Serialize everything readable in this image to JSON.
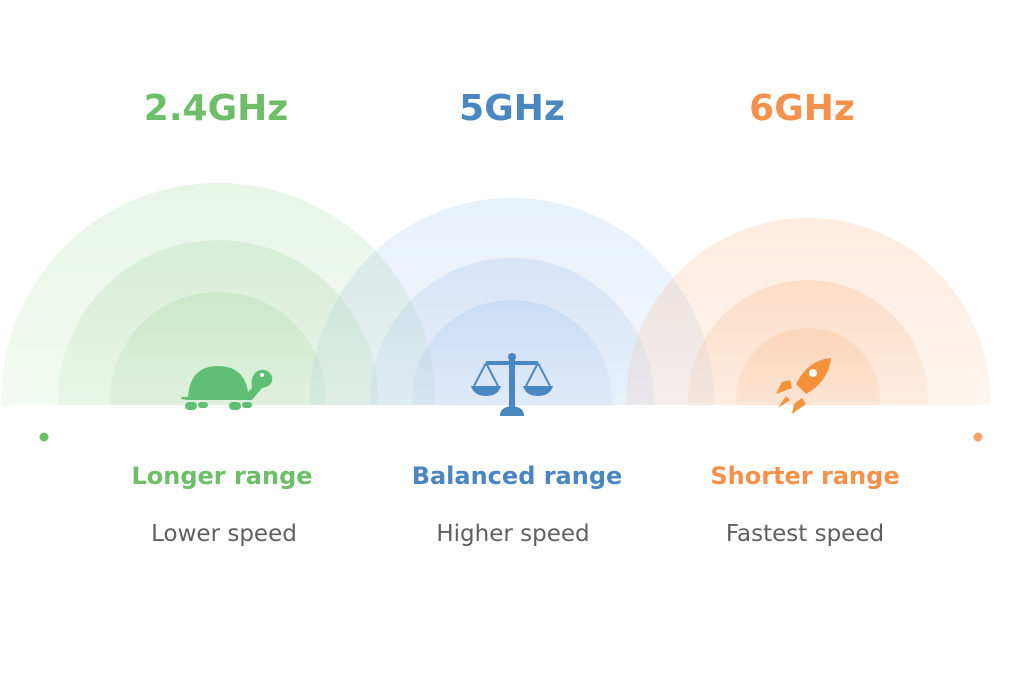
{
  "colors": {
    "green": "#6dbf67",
    "blue": "#4a86c0",
    "orange": "#f5914a"
  },
  "bands": [
    {
      "title": "2.4GHz",
      "range": "Longer range",
      "speed": "Lower speed",
      "icon": "turtle-icon",
      "color": "#6dbf67"
    },
    {
      "title": "5GHz",
      "range": "Balanced range",
      "speed": "Higher speed",
      "icon": "scale-icon",
      "color": "#4a86c0"
    },
    {
      "title": "6GHz",
      "range": "Shorter range",
      "speed": "Fastest speed",
      "icon": "rocket-icon",
      "color": "#f5914a"
    }
  ]
}
